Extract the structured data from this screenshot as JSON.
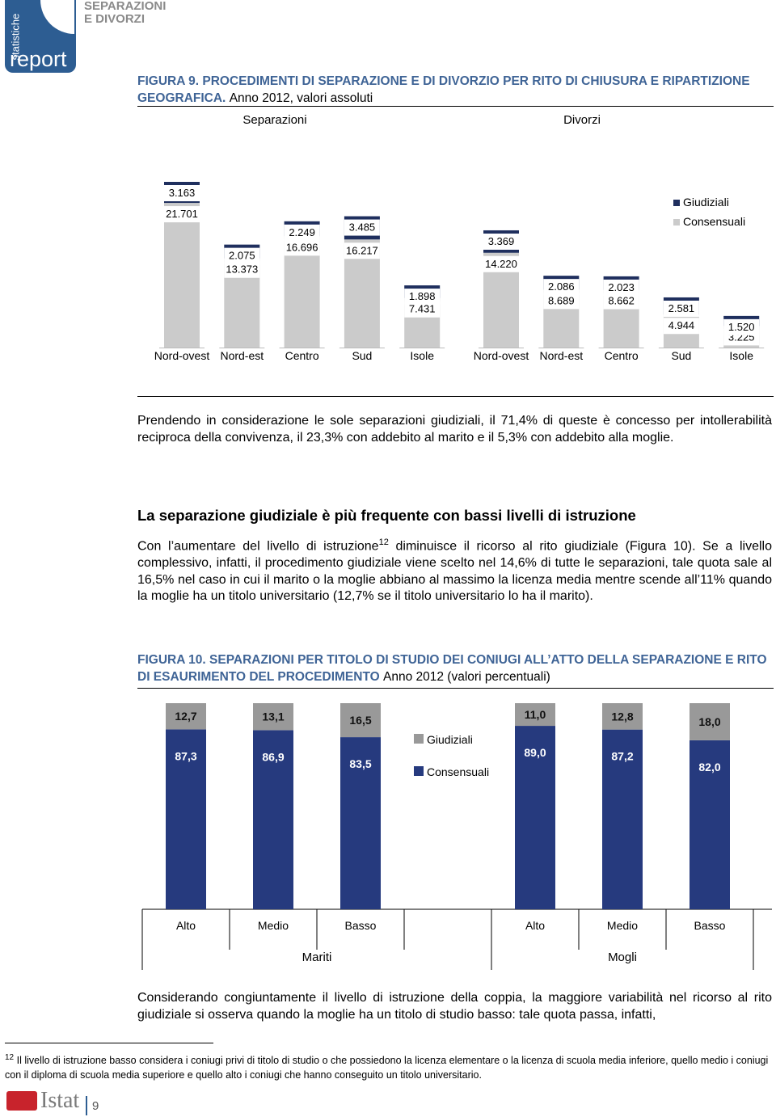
{
  "header": {
    "logo_vertical": "statistiche",
    "logo_main": "report",
    "topic_line1": "SEPARAZIONI",
    "topic_line2": "E DIVORZI"
  },
  "figure9": {
    "label": "FIGURA 9.",
    "title": "PROCEDIMENTI DI SEPARAZIONE E DI DIVORZIO PER RITO DI CHIUSURA E RIPARTIZIONE GEOGRAFICA.",
    "subtitle": "Anno 2012, valori assoluti"
  },
  "paragraph1": "Prendendo in considerazione le sole separazioni giudiziali, il 71,4% di queste è concesso per intollerabilità reciproca della convivenza, il 23,3% con addebito al marito e il 5,3% con addebito alla moglie.",
  "section_heading": "La separazione giudiziale è più frequente con bassi livelli di istruzione",
  "paragraph2": {
    "before": "Con l’aumentare del livello di istruzione",
    "footnote_ref": "12",
    "after": " diminuisce il ricorso al rito giudiziale (Figura 10). Se a livello complessivo, infatti, il procedimento giudiziale viene scelto nel 14,6% di tutte le separazioni, tale quota sale al 16,5% nel caso in cui il marito o la moglie abbiano al massimo la licenza media mentre scende all’11% quando la moglie ha un titolo universitario (12,7% se il titolo universitario lo ha il marito)."
  },
  "figure10": {
    "label": "FIGURA 10.",
    "title": "SEPARAZIONI PER TITOLO DI STUDIO DEI CONIUGI ALL’ATTO DELLA SEPARAZIONE E RITO DI ESAURIMENTO DEL PROCEDIMENTO",
    "subtitle": "Anno 2012 (valori percentuali)"
  },
  "paragraph3": "Considerando congiuntamente il livello di istruzione della coppia, la maggiore variabilità nel ricorso al rito giudiziale si osserva quando la moglie ha un titolo di studio basso: tale quota passa, infatti,",
  "footnote": {
    "number": "12",
    "text": "Il livello di istruzione basso considera i coniugi privi di titolo di studio o che possiedono la licenza elementare o la licenza di scuola media inferiore, quello medio i coniugi con il diploma di scuola media superiore e quello alto i coniugi che hanno conseguito un titolo universitario."
  },
  "footer": {
    "logo": "Istat",
    "page": "9"
  },
  "chart_data": [
    {
      "type": "bar",
      "stacked": true,
      "groups": [
        "Separazioni",
        "Divorzi"
      ],
      "categories": [
        "Nord-ovest",
        "Nord-est",
        "Centro",
        "Sud",
        "Isole",
        "Nord-ovest",
        "Nord-est",
        "Centro",
        "Sud",
        "Isole"
      ],
      "series": [
        {
          "name": "Consensuali",
          "color": "#cbcbcb",
          "values": [
            21701,
            13373,
            16696,
            16217,
            7431,
            14220,
            8689,
            8662,
            4944,
            3225
          ],
          "value_labels": [
            "21.701",
            "13.373",
            "16.696",
            "16.217",
            "7.431",
            "14.220",
            "8.689",
            "8.662",
            "4.944",
            "3.225"
          ]
        },
        {
          "name": "Giudiziali",
          "color": "#1f2f5e",
          "values": [
            3163,
            2075,
            2249,
            3485,
            1898,
            3369,
            2086,
            2023,
            2581,
            1520
          ],
          "value_labels": [
            "3.163",
            "2.075",
            "2.249",
            "3.485",
            "1.898",
            "3.369",
            "2.086",
            "2.023",
            "2.581",
            "1.520"
          ]
        }
      ]
    },
    {
      "type": "bar",
      "stacked": true,
      "groups": [
        "Mariti",
        "Mogli"
      ],
      "categories": [
        "Alto",
        "Medio",
        "Basso",
        "Alto",
        "Medio",
        "Basso"
      ],
      "series": [
        {
          "name": "Consensuali",
          "color": "#263a7e",
          "values": [
            87.3,
            86.9,
            83.5,
            89.0,
            87.2,
            82.0
          ],
          "value_labels": [
            "87,3",
            "86,9",
            "83,5",
            "89,0",
            "87,2",
            "82,0"
          ]
        },
        {
          "name": "Giudiziali",
          "color": "#999999",
          "values": [
            12.7,
            13.1,
            16.5,
            11.0,
            12.8,
            18.0
          ],
          "value_labels": [
            "12,7",
            "13,1",
            "16,5",
            "11,0",
            "12,8",
            "18,0"
          ]
        }
      ]
    }
  ]
}
